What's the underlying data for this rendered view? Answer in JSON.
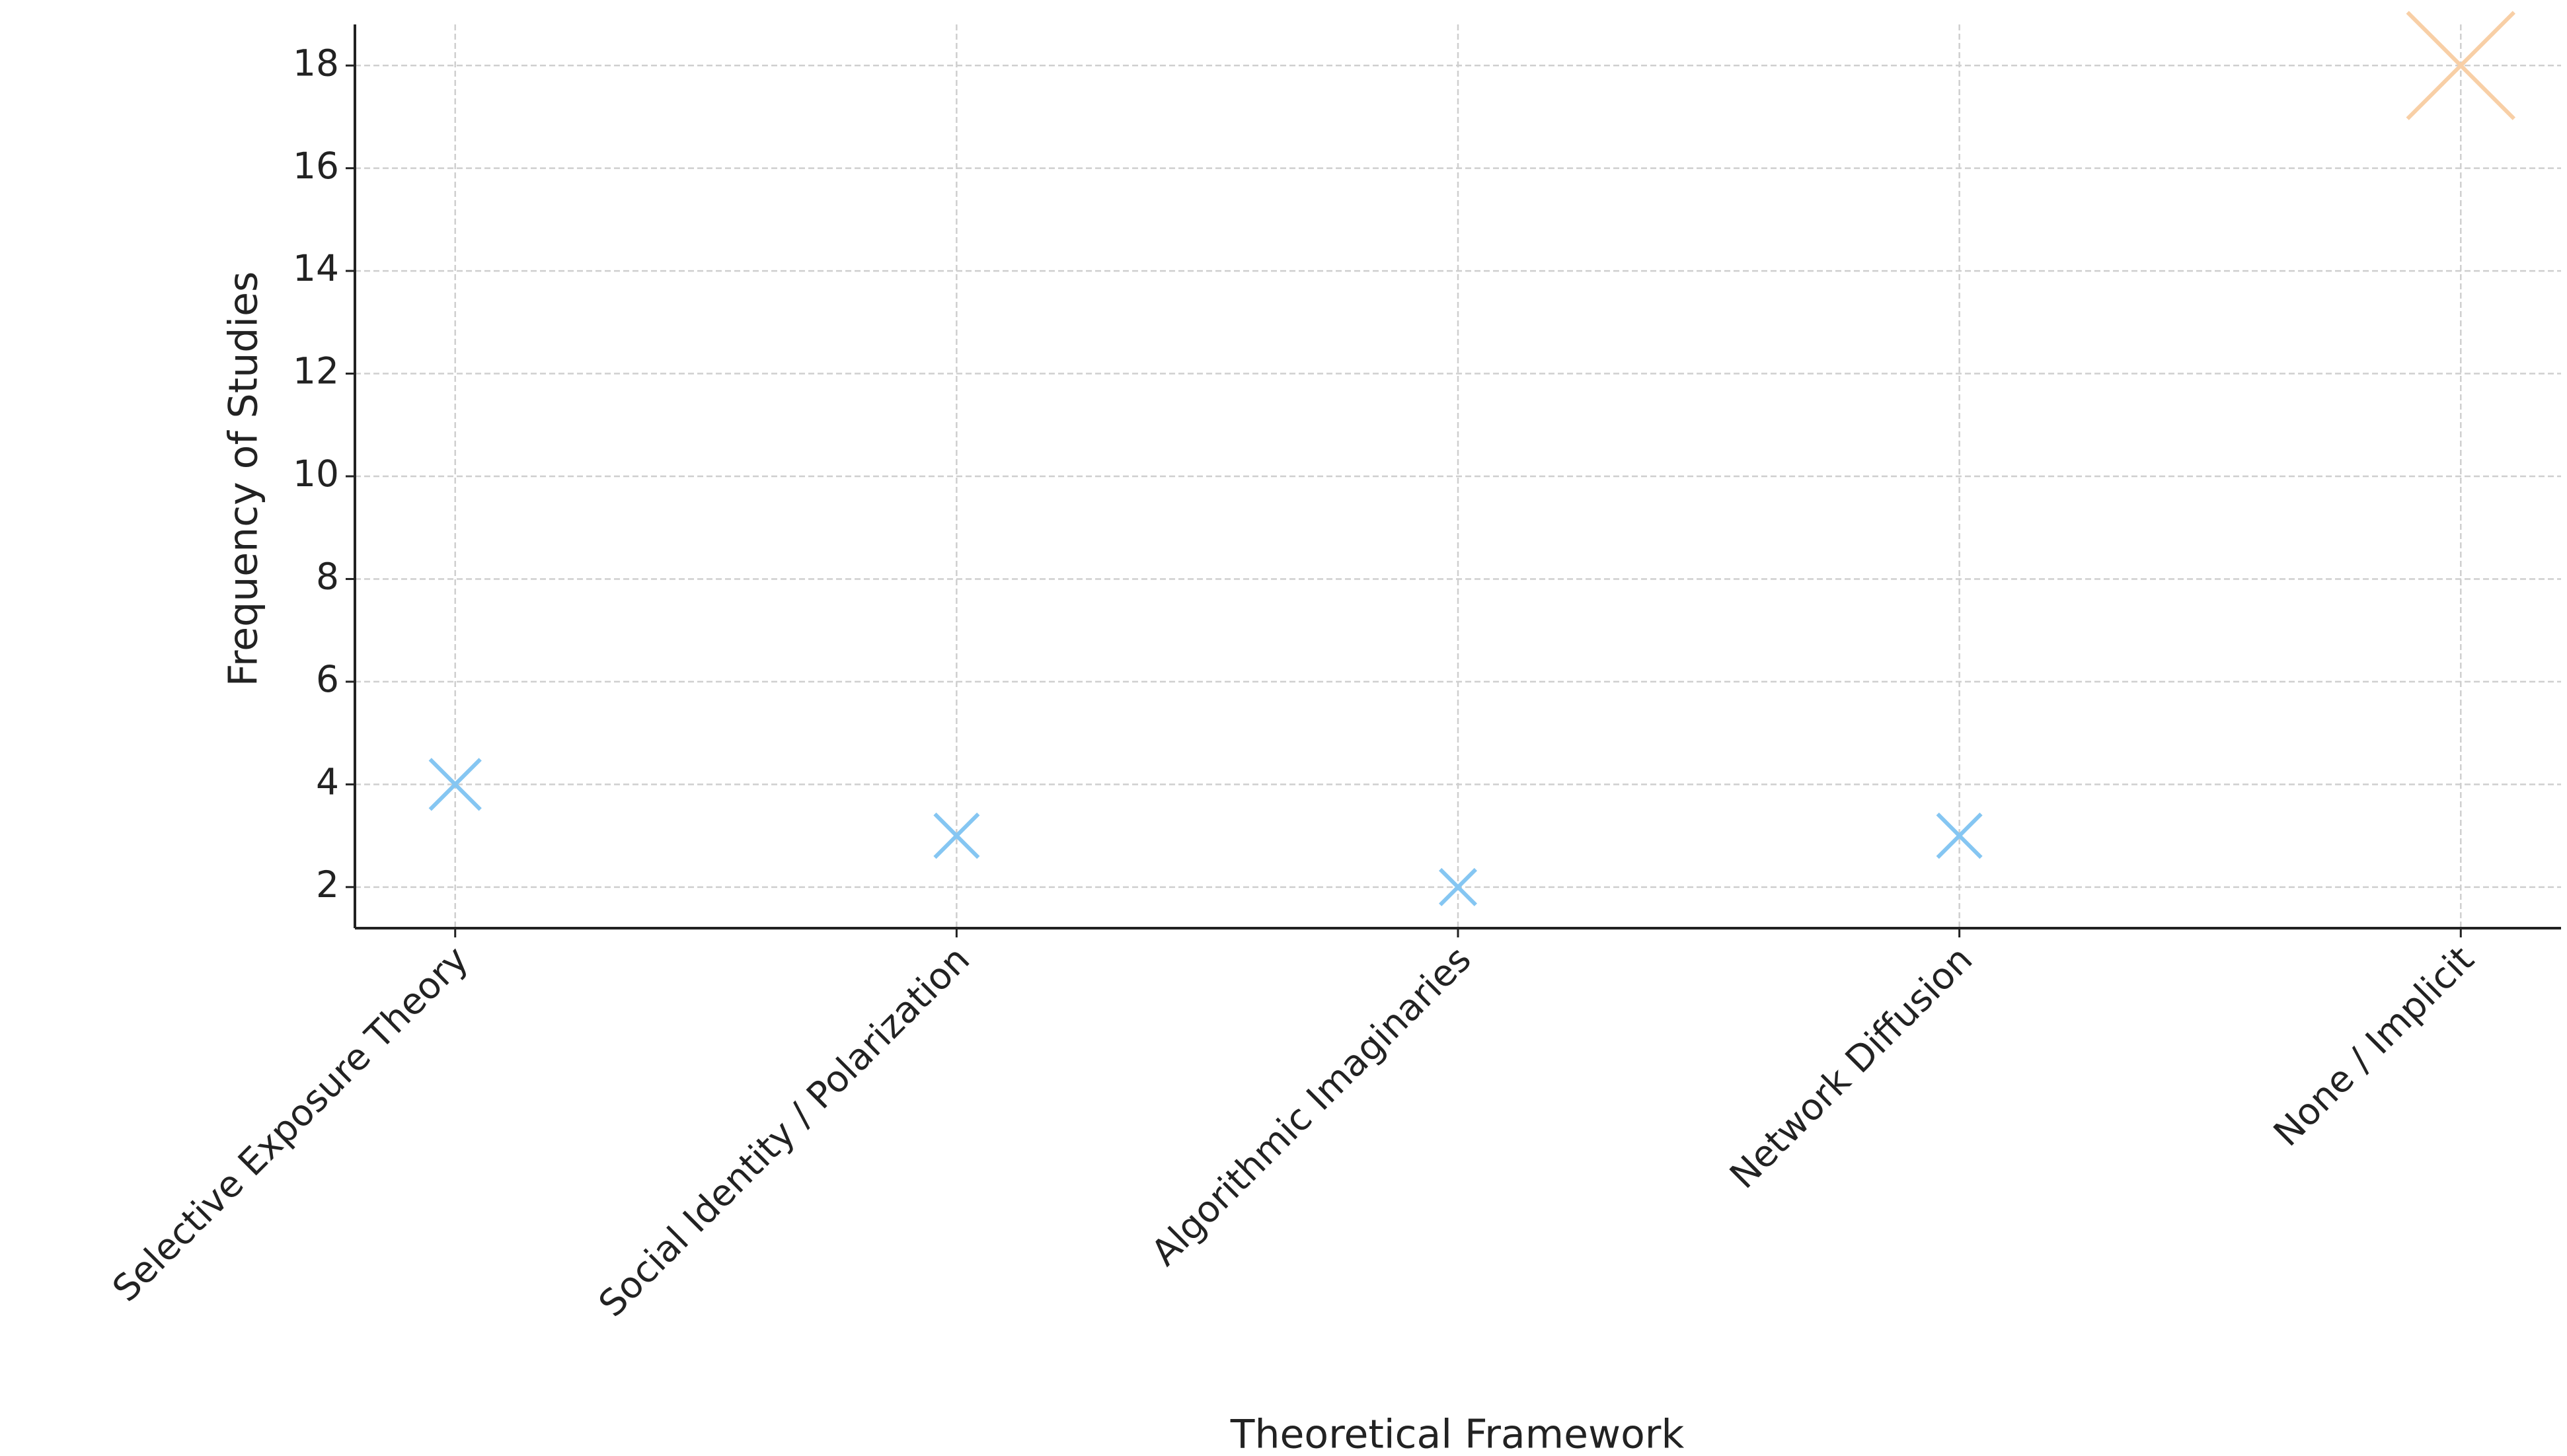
{
  "chart_data": {
    "type": "scatter",
    "x_label": "Theoretical Framework",
    "y_label": "Frequency of Studies",
    "categories": [
      "Selective Exposure Theory",
      "Social Identity / Polarization",
      "Algorithmic Imaginaries",
      "Network Diffusion",
      "None / Implicit"
    ],
    "values": [
      4,
      3,
      2,
      3,
      18
    ],
    "colors": [
      "#85c6f2",
      "#85c6f2",
      "#85c6f2",
      "#85c6f2",
      "#f8cfa6"
    ],
    "marker": "x",
    "ylim": [
      1.2,
      18.8
    ],
    "yticks": [
      2,
      4,
      6,
      8,
      10,
      12,
      14,
      16,
      18
    ],
    "grid": true
  }
}
